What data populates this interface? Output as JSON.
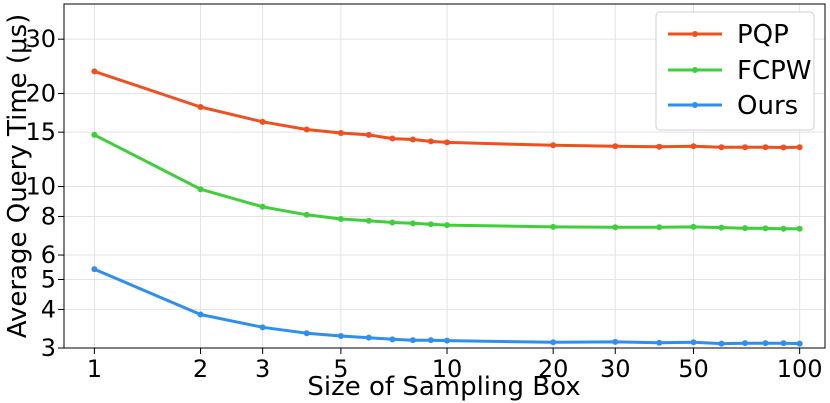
{
  "chart_data": {
    "type": "line",
    "xlabel": "Size of Sampling Box",
    "ylabel": "Average Query Time (μs)",
    "x_scale": "log",
    "y_scale": "log",
    "xlim": [
      0.82,
      118
    ],
    "ylim": [
      3,
      39
    ],
    "grid": true,
    "legend_placement": "top-right",
    "x_ticks": [
      1,
      2,
      3,
      5,
      10,
      20,
      30,
      50,
      100
    ],
    "y_ticks": [
      3,
      4,
      5,
      6,
      8,
      10,
      15,
      20,
      30
    ],
    "x": [
      1,
      2,
      3,
      4,
      5,
      6,
      7,
      8,
      9,
      10,
      20,
      30,
      40,
      50,
      60,
      70,
      80,
      90,
      100
    ],
    "series": [
      {
        "name": "PQP",
        "color": "#f0501e",
        "values": [
          23.6,
          18.1,
          16.2,
          15.3,
          14.9,
          14.7,
          14.3,
          14.2,
          14.0,
          13.9,
          13.6,
          13.5,
          13.45,
          13.5,
          13.4,
          13.4,
          13.4,
          13.38,
          13.4
        ]
      },
      {
        "name": "FCPW",
        "color": "#3ecf3a",
        "values": [
          14.7,
          9.8,
          8.6,
          8.1,
          7.85,
          7.75,
          7.65,
          7.6,
          7.55,
          7.5,
          7.4,
          7.38,
          7.38,
          7.4,
          7.36,
          7.33,
          7.32,
          7.3,
          7.3
        ]
      },
      {
        "name": "Ours",
        "color": "#2e90ee",
        "values": [
          5.4,
          3.85,
          3.5,
          3.35,
          3.28,
          3.24,
          3.2,
          3.18,
          3.18,
          3.17,
          3.13,
          3.14,
          3.12,
          3.13,
          3.1,
          3.11,
          3.11,
          3.11,
          3.1
        ]
      }
    ]
  }
}
